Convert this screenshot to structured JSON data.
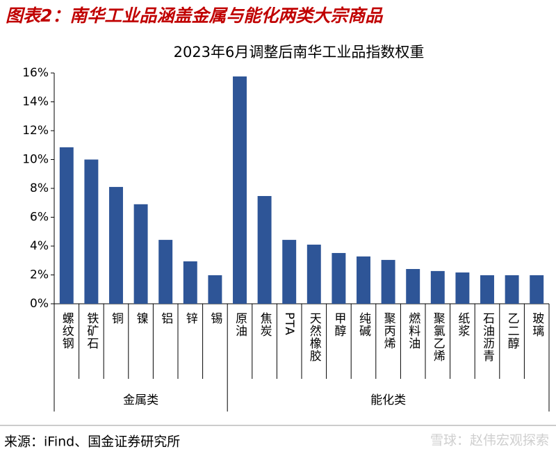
{
  "header": {
    "title": "图表2：南华工业品涵盖金属与能化两类大宗商品"
  },
  "chart_data": {
    "type": "bar",
    "title": "2023年6月调整后南华工业品指数权重",
    "categories": [
      "螺纹钢",
      "铁矿石",
      "铜",
      "镍",
      "铝",
      "锌",
      "锡",
      "原油",
      "焦炭",
      "PTA",
      "天然橡胶",
      "甲醇",
      "纯碱",
      "聚丙烯",
      "燃料油",
      "聚氯乙烯",
      "纸浆",
      "石油沥青",
      "乙二醇",
      "玻璃"
    ],
    "values": [
      10.85,
      10.0,
      8.1,
      6.9,
      4.43,
      2.94,
      1.98,
      15.76,
      7.47,
      4.43,
      4.1,
      3.52,
      3.28,
      3.04,
      2.41,
      2.27,
      2.17,
      1.98,
      1.98,
      1.98
    ],
    "groups": [
      {
        "name": "金属类",
        "size": 7
      },
      {
        "name": "能化类",
        "size": 13
      }
    ],
    "color": "#2e5597",
    "ylim": [
      0,
      16
    ],
    "yticks": [
      {
        "value": 0,
        "label": "0%"
      },
      {
        "value": 2,
        "label": "2%"
      },
      {
        "value": 4,
        "label": "4%"
      },
      {
        "value": 6,
        "label": "6%"
      },
      {
        "value": 8,
        "label": "8%"
      },
      {
        "value": 10,
        "label": "10%"
      },
      {
        "value": 12,
        "label": "12%"
      },
      {
        "value": 14,
        "label": "14%"
      },
      {
        "value": 16,
        "label": "16%"
      }
    ],
    "grid": false
  },
  "footer": {
    "source": "来源：iFind、国金证券研究所",
    "watermark": "雪球：赵伟宏观探索"
  }
}
